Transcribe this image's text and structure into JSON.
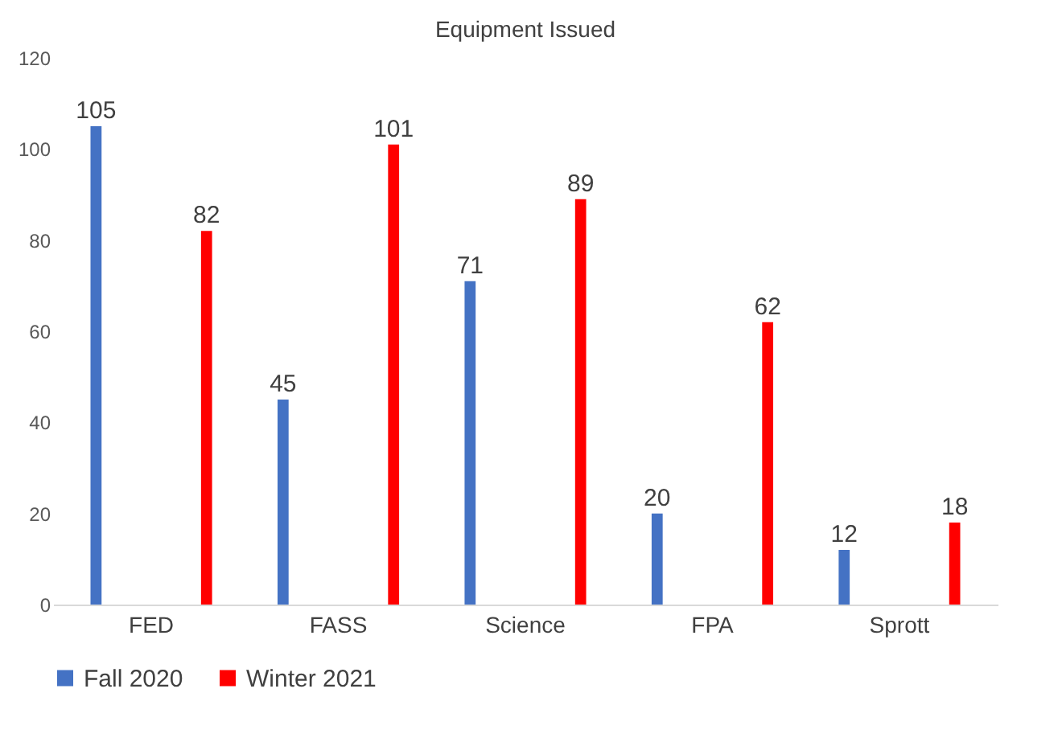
{
  "chart_data": {
    "type": "bar",
    "title": "Equipment Issued",
    "categories": [
      "FED",
      "FASS",
      "Science",
      "FPA",
      "Sprott"
    ],
    "series": [
      {
        "name": "Fall 2020",
        "color": "#4472c4",
        "values": [
          105,
          45,
          71,
          20,
          12
        ]
      },
      {
        "name": "Winter 2021",
        "color": "#ff0000",
        "values": [
          82,
          101,
          89,
          62,
          18
        ]
      }
    ],
    "ylim": [
      0,
      120
    ],
    "yticks": [
      0,
      20,
      40,
      60,
      80,
      100,
      120
    ],
    "grid": false,
    "legend": "bottom",
    "data_labels": true
  }
}
